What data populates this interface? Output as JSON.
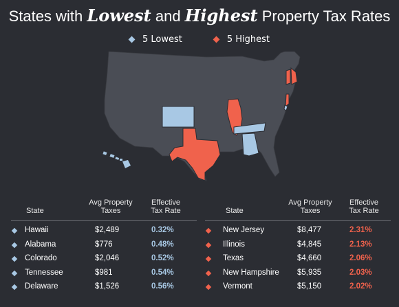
{
  "title": {
    "prefix": "States with",
    "lowest": "Lowest",
    "mid": "and",
    "highest": "Highest",
    "suffix": "Property Tax Rates"
  },
  "legend": {
    "lowest_label": "5 Lowest",
    "highest_label": "5 Highest"
  },
  "colors": {
    "background": "#2b2d33",
    "map_base": "#4a4d55",
    "lowest": "#a8c8e4",
    "highest": "#f0624c",
    "divider": "#6d6f75"
  },
  "headers": {
    "state": "State",
    "taxes": [
      "Avg Property",
      "Taxes"
    ],
    "rate": [
      "Effective",
      "Tax Rate"
    ]
  },
  "lowest_states": [
    {
      "state": "Hawaii",
      "taxes": "$2,489",
      "rate": "0.32%"
    },
    {
      "state": "Alabama",
      "taxes": "$776",
      "rate": "0.48%"
    },
    {
      "state": "Colorado",
      "taxes": "$2,046",
      "rate": "0.52%"
    },
    {
      "state": "Tennessee",
      "taxes": "$981",
      "rate": "0.54%"
    },
    {
      "state": "Delaware",
      "taxes": "$1,526",
      "rate": "0.56%"
    }
  ],
  "highest_states": [
    {
      "state": "New Jersey",
      "taxes": "$8,477",
      "rate": "2.31%"
    },
    {
      "state": "Illinois",
      "taxes": "$4,845",
      "rate": "2.13%"
    },
    {
      "state": "Texas",
      "taxes": "$4,660",
      "rate": "2.06%"
    },
    {
      "state": "New Hampshire",
      "taxes": "$5,935",
      "rate": "2.03%"
    },
    {
      "state": "Vermont",
      "taxes": "$5,150",
      "rate": "2.02%"
    }
  ]
}
